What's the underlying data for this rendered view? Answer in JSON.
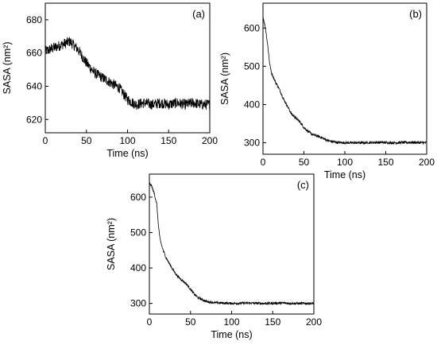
{
  "chart_data": [
    {
      "type": "line",
      "panel_label": "(a)",
      "xlabel": "Time (ns)",
      "ylabel": "SASA (nm²)",
      "xlim": [
        0,
        200
      ],
      "ylim": [
        612,
        690
      ],
      "xticks": [
        0,
        50,
        100,
        150,
        200
      ],
      "yticks": [
        620,
        640,
        660,
        680
      ],
      "grid": false,
      "series": [
        {
          "color": "#000000",
          "x": [
            0,
            10,
            20,
            30,
            40,
            50,
            60,
            70,
            80,
            90,
            100,
            110,
            120,
            130,
            140,
            150,
            160,
            170,
            180,
            190,
            200
          ],
          "y": [
            661,
            663,
            665,
            667,
            662,
            654,
            648,
            645,
            642,
            639,
            632,
            629,
            630,
            629,
            630,
            629,
            630,
            629,
            630,
            629,
            629
          ]
        }
      ]
    },
    {
      "type": "line",
      "panel_label": "(b)",
      "xlabel": "Time (ns)",
      "ylabel": "SASA (nm²)",
      "xlim": [
        0,
        200
      ],
      "ylim": [
        270,
        665
      ],
      "xticks": [
        0,
        50,
        100,
        150,
        200
      ],
      "yticks": [
        300,
        400,
        500,
        600
      ],
      "grid": false,
      "series": [
        {
          "color": "#000000",
          "x": [
            0,
            2,
            4,
            6,
            8,
            10,
            15,
            20,
            25,
            30,
            35,
            40,
            45,
            50,
            55,
            60,
            70,
            80,
            90,
            100,
            120,
            140,
            160,
            180,
            200
          ],
          "y": [
            630,
            610,
            585,
            550,
            510,
            485,
            460,
            440,
            415,
            395,
            375,
            365,
            355,
            340,
            330,
            322,
            315,
            305,
            301,
            300,
            300,
            301,
            300,
            301,
            300
          ]
        }
      ]
    },
    {
      "type": "line",
      "panel_label": "(c)",
      "xlabel": "Time (ns)",
      "ylabel": "SASA (nm²)",
      "xlim": [
        0,
        200
      ],
      "ylim": [
        270,
        665
      ],
      "xticks": [
        0,
        50,
        100,
        150,
        200
      ],
      "yticks": [
        300,
        400,
        500,
        600
      ],
      "grid": false,
      "series": [
        {
          "color": "#000000",
          "x": [
            0,
            3,
            6,
            9,
            11,
            13,
            16,
            20,
            25,
            30,
            35,
            40,
            45,
            50,
            55,
            60,
            70,
            80,
            90,
            100,
            120,
            140,
            160,
            180,
            200
          ],
          "y": [
            640,
            630,
            610,
            580,
            520,
            480,
            455,
            430,
            410,
            390,
            375,
            365,
            355,
            340,
            325,
            315,
            305,
            302,
            301,
            300,
            301,
            300,
            301,
            300,
            300
          ]
        }
      ]
    }
  ]
}
